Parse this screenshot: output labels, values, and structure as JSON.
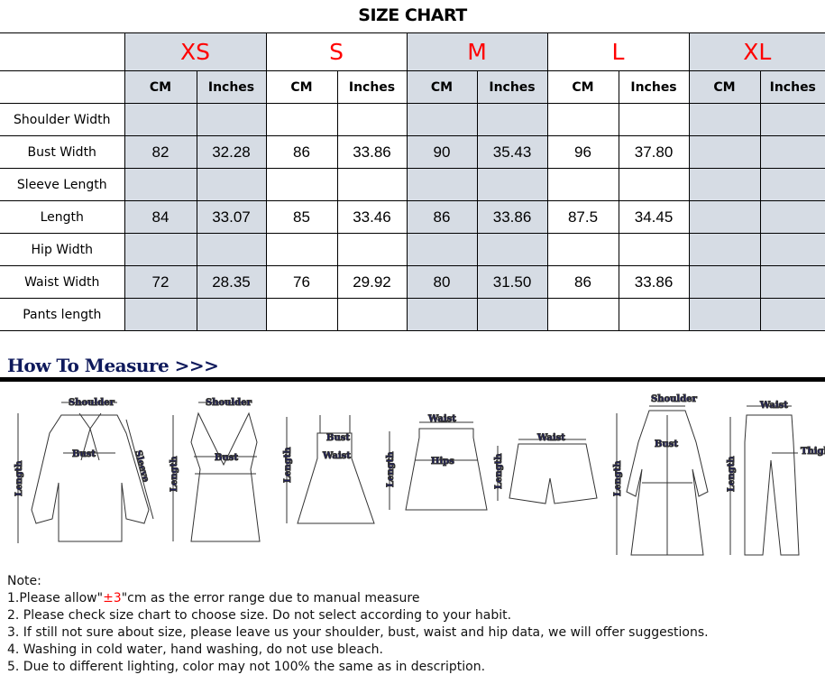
{
  "title": "SIZE CHART",
  "colors": {
    "size_label": "#ff0000",
    "shade": "#d6dce4",
    "measure_label": "#1a1a6e",
    "heading": "#0f1a5c"
  },
  "sizes": [
    "XS",
    "S",
    "M",
    "L",
    "XL"
  ],
  "units": [
    "CM",
    "Inches"
  ],
  "rows": [
    {
      "label": "Shoulder Width",
      "values": [
        "",
        "",
        "",
        "",
        "",
        "",
        "",
        "",
        "",
        ""
      ]
    },
    {
      "label": "Bust Width",
      "values": [
        "82",
        "32.28",
        "86",
        "33.86",
        "90",
        "35.43",
        "96",
        "37.80",
        "",
        ""
      ]
    },
    {
      "label": "Sleeve Length",
      "values": [
        "",
        "",
        "",
        "",
        "",
        "",
        "",
        "",
        "",
        ""
      ]
    },
    {
      "label": "Length",
      "values": [
        "84",
        "33.07",
        "85",
        "33.46",
        "86",
        "33.86",
        "87.5",
        "34.45",
        "",
        ""
      ]
    },
    {
      "label": "Hip Width",
      "values": [
        "",
        "",
        "",
        "",
        "",
        "",
        "",
        "",
        "",
        ""
      ]
    },
    {
      "label": "Waist Width",
      "values": [
        "72",
        "28.35",
        "76",
        "29.92",
        "80",
        "31.50",
        "86",
        "33.86",
        "",
        ""
      ]
    },
    {
      "label": "Pants length",
      "values": [
        "",
        "",
        "",
        "",
        "",
        "",
        "",
        "",
        "",
        ""
      ]
    }
  ],
  "how_to_measure": "How To Measure >>>",
  "measure_labels": {
    "shoulder": "Shoulder",
    "length": "Length",
    "bust": "Bust",
    "sleeve": "Sleeve",
    "waist": "Waist",
    "hips": "Hips",
    "thigh": "Thigh"
  },
  "notes": {
    "heading": "Note:",
    "n1_pre": "1.Please allow\"",
    "n1_red": "±3",
    "n1_post": "\"cm as the error range due to manual measure",
    "n2": "2. Please check size chart to choose size. Do not select according to your habit.",
    "n3": "3. If still not sure about size, please leave us your shoulder, bust, waist and hip data, we will offer suggestions.",
    "n4": "4. Washing in cold water, hand washing, do not use bleach.",
    "n5": "5. Due to different lighting, color may not 100% the same as in description."
  }
}
